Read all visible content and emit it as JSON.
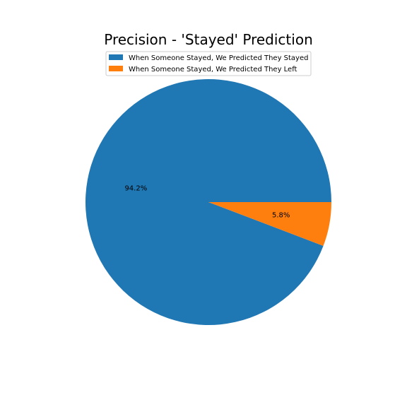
{
  "chart_data": {
    "type": "pie",
    "title": "Precision - 'Stayed' Prediction",
    "legend_position": "top-center",
    "start_angle_deg": 0,
    "direction": "counterclockwise",
    "slices": [
      {
        "label": "When Someone Stayed, We Predicted They Stayed",
        "value": 94.2,
        "pct_label": "94.2%",
        "color": "#1f77b4"
      },
      {
        "label": "When Someone Stayed, We Predicted They Left",
        "value": 5.8,
        "pct_label": "5.8%",
        "color": "#ff7f0e"
      }
    ]
  }
}
